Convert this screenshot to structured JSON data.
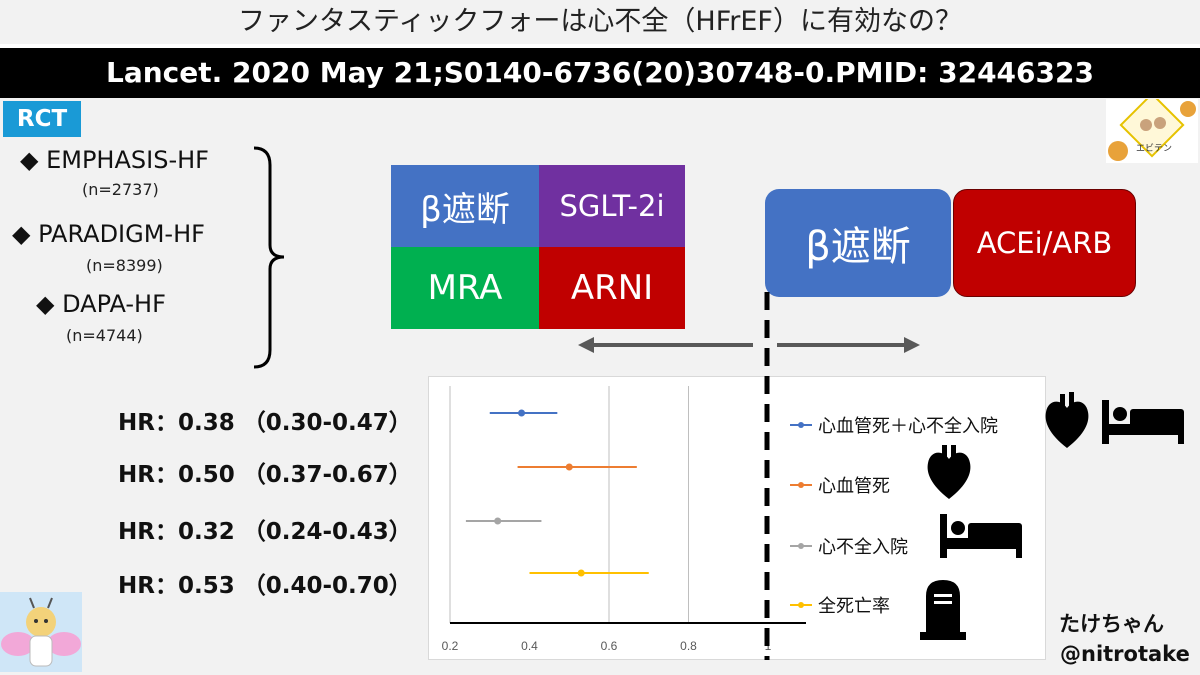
{
  "title": "ファンタスティックフォーは心不全（HFrEF）に有効なの？",
  "citation": "Lancet. 2020 May 21;S0140-6736(20)30748-0.PMID: 32446323",
  "rct_label": "RCT",
  "trials": [
    {
      "name": "◆ EMPHASIS-HF",
      "n": "(n=2737)"
    },
    {
      "name": "◆ PARADIGM-HF",
      "n": "(n=8399)"
    },
    {
      "name": "◆ DAPA-HF",
      "n": "(n=4744)"
    }
  ],
  "fantastic_four": {
    "beta": "β遮断",
    "sglt2": "SGLT-2i",
    "mra": "MRA",
    "arni": "ARNI"
  },
  "conventional": {
    "beta": "β遮断",
    "acei": "ACEi/ARB"
  },
  "hr_labels": [
    "HR：0.38 （0.30-0.47）",
    "HR：0.50 （0.37-0.67）",
    "HR：0.32 （0.24-0.43）",
    "HR：0.53 （0.40-0.70）"
  ],
  "legend": [
    "心血管死＋心不全入院",
    "心血管死",
    "心不全入院",
    "全死亡率"
  ],
  "author": {
    "name": "たけちゃん",
    "handle": "@nitrotake"
  },
  "logo_text": "エビテン",
  "colors": {
    "blue_box": "#4472c4",
    "purple_box": "#7030a0",
    "green_box": "#00b050",
    "red_box": "#c00000",
    "series": [
      "#4472c4",
      "#ed7d31",
      "#a5a5a5",
      "#ffc000"
    ]
  },
  "chart_data": {
    "type": "forest",
    "x_ticks": [
      "0.2",
      "0.4",
      "0.6",
      "0.8",
      "1"
    ],
    "xlim": [
      0.2,
      1.1
    ],
    "reference_line": 1,
    "grid": "vertical",
    "series": [
      {
        "name": "心血管死＋心不全入院",
        "hr": 0.38,
        "lo": 0.3,
        "hi": 0.47
      },
      {
        "name": "心血管死",
        "hr": 0.5,
        "lo": 0.37,
        "hi": 0.67
      },
      {
        "name": "心不全入院",
        "hr": 0.32,
        "lo": 0.24,
        "hi": 0.43
      },
      {
        "name": "全死亡率",
        "hr": 0.53,
        "lo": 0.4,
        "hi": 0.7
      }
    ]
  }
}
